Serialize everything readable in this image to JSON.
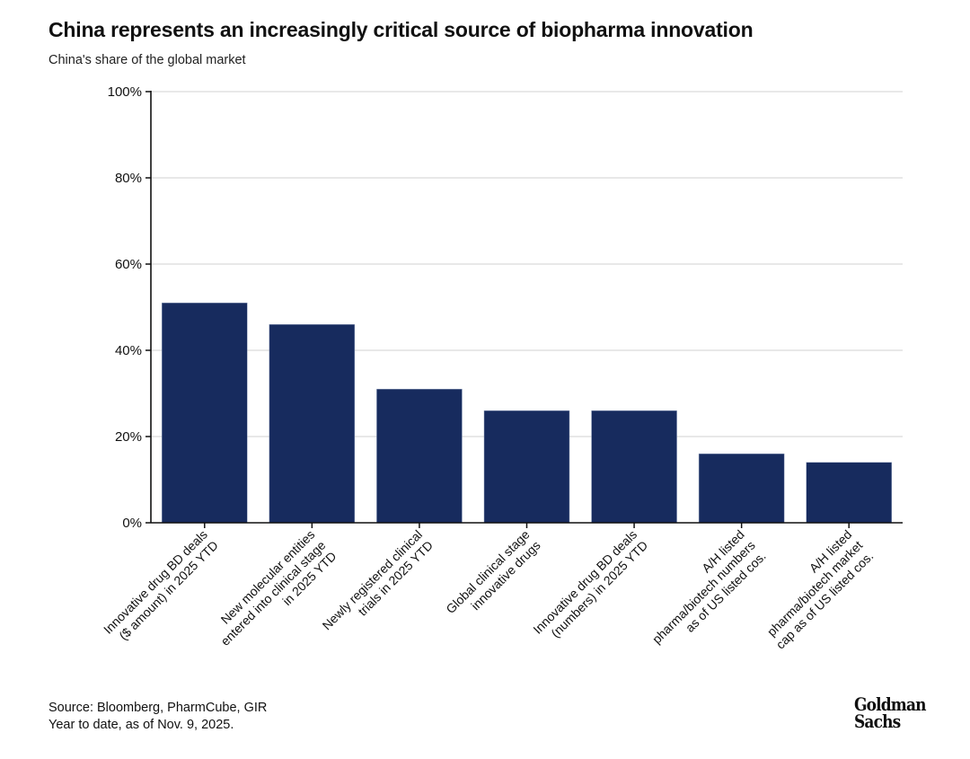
{
  "header": {
    "title": "China represents an increasingly critical source of biopharma innovation",
    "subtitle": "China's share of the global market"
  },
  "footer": {
    "source": "Source: Bloomberg, PharmCube, GIR",
    "note": "Year to date, as of Nov. 9, 2025."
  },
  "logo": {
    "line1": "Goldman",
    "line2": "Sachs"
  },
  "colors": {
    "bar": "#172b5e",
    "grid": "#d9d9d9",
    "axis": "#111111"
  },
  "chart_data": {
    "type": "bar",
    "title": "China represents an increasingly critical source of biopharma innovation",
    "subtitle": "China's share of the global market",
    "xlabel": "",
    "ylabel": "",
    "ylim": [
      0,
      100
    ],
    "yticks": [
      0,
      20,
      40,
      60,
      80,
      100
    ],
    "ytick_labels": [
      "0%",
      "20%",
      "40%",
      "60%",
      "80%",
      "100%"
    ],
    "grid": true,
    "legend": "none",
    "categories": [
      [
        "Innovative drug BD deals",
        "($ amount) in 2025 YTD"
      ],
      [
        "New molecular entities",
        "entered into clinical stage",
        "in 2025 YTD"
      ],
      [
        "Newly registered clinical",
        "trials in 2025 YTD"
      ],
      [
        "Global clinical stage",
        "innovative drugs"
      ],
      [
        "Innovative drug BD deals",
        "(numbers) in 2025 YTD"
      ],
      [
        "A/H listed",
        "pharma/biotech numbers",
        "as of US listed cos."
      ],
      [
        "A/H listed",
        "pharma/biotech market",
        "cap as of US listed cos."
      ]
    ],
    "values": [
      51,
      46,
      31,
      26,
      26,
      16,
      14
    ],
    "unit": "%"
  }
}
